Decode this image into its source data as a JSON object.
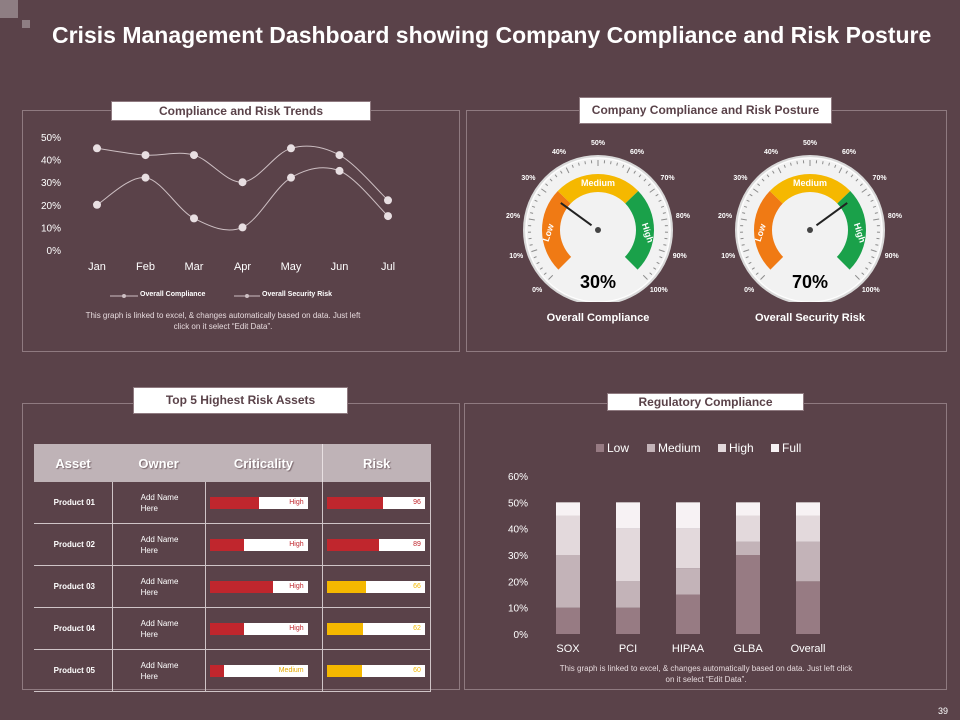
{
  "title": "Crisis Management Dashboard showing Company Compliance and Risk Posture",
  "page_number": "39",
  "trends": {
    "panel_title": "Compliance  and Risk Trends",
    "note_line1": "This graph is linked to excel, & changes automatically  based on data.  Just left",
    "note_line2": "click on it select “Edit Data”.",
    "chart_data": {
      "type": "line",
      "categories": [
        "Jan",
        "Feb",
        "Mar",
        "Apr",
        "May",
        "Jun",
        "Jul"
      ],
      "series": [
        {
          "name": "Overall Compliance",
          "values": [
            45,
            42,
            42,
            30,
            45,
            42,
            22
          ]
        },
        {
          "name": "Overall Security Risk",
          "values": [
            20,
            32,
            14,
            10,
            32,
            35,
            15
          ]
        }
      ],
      "ylim": [
        0,
        50
      ],
      "yticks": [
        "0%",
        "10%",
        "20%",
        "30%",
        "40%",
        "50%"
      ]
    }
  },
  "posture": {
    "panel_title": "Company  Compliance  and Risk Posture",
    "gauges": [
      {
        "value": 30,
        "pct_text": "30%",
        "label": "Overall Compliance"
      },
      {
        "value": 70,
        "pct_text": "70%",
        "label": "Overall Security Risk"
      }
    ],
    "zone_labels": {
      "low": "Low",
      "medium": "Medium",
      "high": "High"
    },
    "ticks": [
      "0%",
      "10%",
      "20%",
      "30%",
      "40%",
      "50%",
      "60%",
      "70%",
      "80%",
      "90%",
      "100%"
    ]
  },
  "assets": {
    "panel_title": "Top 5 Highest Risk Assets",
    "headers": {
      "asset": "Asset",
      "owner": "Owner",
      "criticality": "Criticality",
      "risk": "Risk"
    },
    "rows": [
      {
        "asset": "Product 01",
        "owner_1": "Add Name",
        "owner_2": "Here",
        "criticality": "High",
        "crit_fill": 0.5,
        "risk": 96,
        "risk_text": "96"
      },
      {
        "asset": "Product 02",
        "owner_1": "Add Name",
        "owner_2": "Here",
        "criticality": "High",
        "crit_fill": 0.35,
        "risk": 89,
        "risk_text": "89"
      },
      {
        "asset": "Product 03",
        "owner_1": "Add Name",
        "owner_2": "Here",
        "criticality": "High",
        "crit_fill": 0.65,
        "risk": 66,
        "risk_text": "66"
      },
      {
        "asset": "Product 04",
        "owner_1": "Add Name",
        "owner_2": "Here",
        "criticality": "High",
        "crit_fill": 0.35,
        "risk": 62,
        "risk_text": "62"
      },
      {
        "asset": "Product 05",
        "owner_1": "Add Name",
        "owner_2": "Here",
        "criticality": "Medium",
        "crit_fill": 0.15,
        "risk": 60,
        "risk_text": "60"
      }
    ],
    "colors": {
      "red": "#c0262d",
      "yellow": "#f5b800"
    }
  },
  "regulatory": {
    "panel_title": "Regulatory Compliance",
    "note_line1": "This graph is linked to excel, & changes automatically  based on data.  Just left click",
    "note_line2": "on it select “Edit Data”.",
    "chart_data": {
      "type": "bar",
      "stacked": true,
      "categories": [
        "SOX",
        "PCI",
        "HIPAA",
        "GLBA",
        "Overall"
      ],
      "series": [
        {
          "name": "Low",
          "color": "#977b83",
          "values": [
            10,
            10,
            15,
            30,
            20
          ]
        },
        {
          "name": "Medium",
          "color": "#c3b3b8",
          "values": [
            20,
            10,
            10,
            5,
            15
          ]
        },
        {
          "name": "High",
          "color": "#e3d9dc",
          "values": [
            15,
            20,
            15,
            10,
            10
          ]
        },
        {
          "name": "Full",
          "color": "#f7f2f4",
          "values": [
            5,
            10,
            10,
            5,
            5
          ]
        }
      ],
      "ylim": [
        0,
        60
      ],
      "yticks": [
        "0%",
        "10%",
        "20%",
        "30%",
        "40%",
        "50%",
        "60%"
      ]
    }
  }
}
